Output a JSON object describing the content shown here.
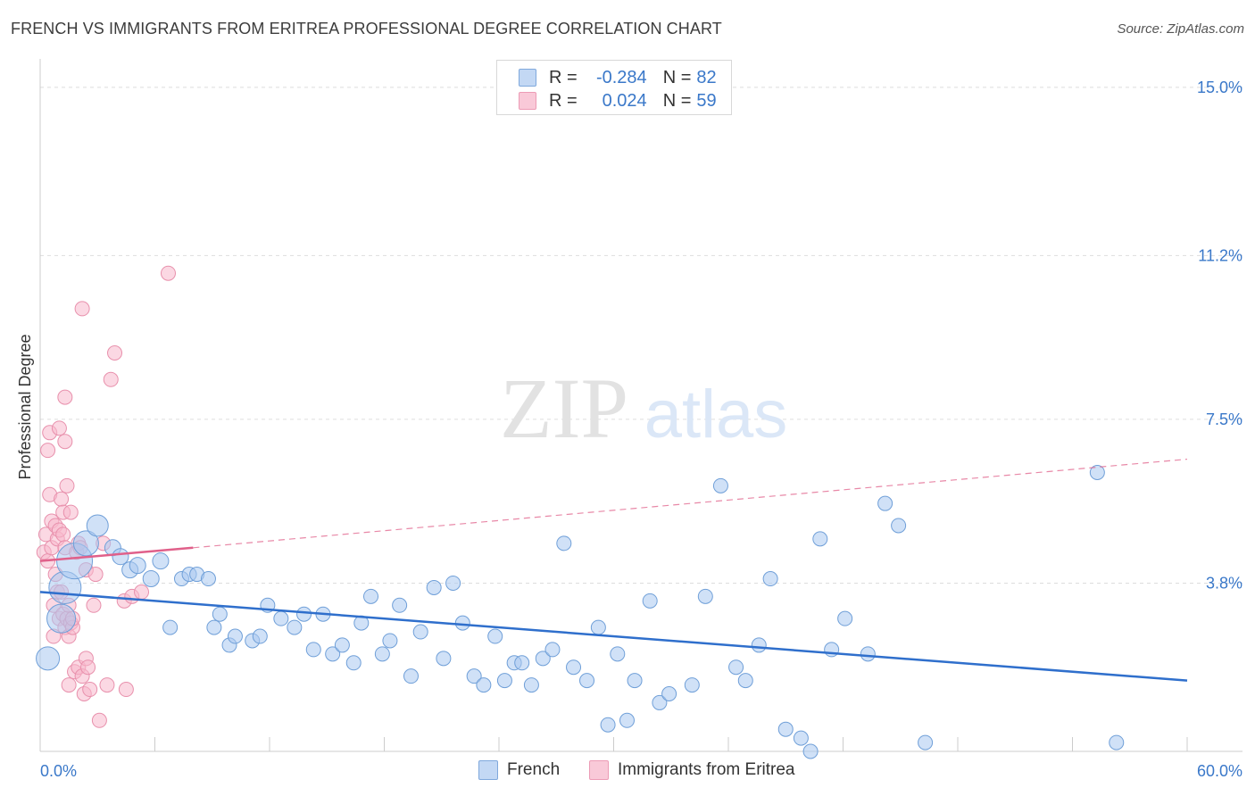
{
  "header": {
    "title": "FRENCH VS IMMIGRANTS FROM ERITREA PROFESSIONAL DEGREE CORRELATION CHART",
    "source": "Source: ZipAtlas.com"
  },
  "watermark": {
    "zip": "ZIP",
    "atlas": "atlas"
  },
  "legend_top": {
    "rows": [
      {
        "r_label": "R =",
        "r_value": "-0.284",
        "n_label": "N =",
        "n_value": "82"
      },
      {
        "r_label": "R =",
        "r_value": "0.024",
        "n_label": "N =",
        "n_value": "59"
      }
    ]
  },
  "legend_bottom": [
    "French",
    "Immigrants from Eritrea"
  ],
  "colors": {
    "french_fill": "#a9c8f0",
    "french_stroke": "#6f9fd8",
    "french_line": "#2f6fcc",
    "eritrea_fill": "#f7b8cc",
    "eritrea_stroke": "#e890ac",
    "eritrea_line": "#e0608a",
    "grid": "#dddddd",
    "axis_text": "#3a78c9"
  },
  "chart_data": {
    "type": "scatter",
    "ylabel": "Professional Degree",
    "xlim": [
      0,
      60
    ],
    "ylim": [
      0,
      15.4
    ],
    "x_tick_labels": [
      "0.0%",
      "60.0%"
    ],
    "y_ticks": [
      3.8,
      7.5,
      11.2,
      15.0
    ],
    "y_tick_labels": [
      "3.8%",
      "7.5%",
      "11.2%",
      "15.0%"
    ],
    "series": [
      {
        "name": "French",
        "r": -0.284,
        "n": 82,
        "trend": {
          "x": [
            0,
            60
          ],
          "y": [
            3.6,
            1.6
          ]
        },
        "points": [
          [
            0.4,
            2.1,
            13
          ],
          [
            1.1,
            3.0,
            16
          ],
          [
            1.3,
            3.7,
            18
          ],
          [
            1.8,
            4.3,
            20
          ],
          [
            2.4,
            4.7,
            14
          ],
          [
            3.0,
            5.1,
            12
          ],
          [
            3.8,
            4.6,
            9
          ],
          [
            4.2,
            4.4,
            9
          ],
          [
            4.7,
            4.1,
            9
          ],
          [
            5.1,
            4.2,
            9
          ],
          [
            5.8,
            3.9,
            9
          ],
          [
            6.3,
            4.3,
            9
          ],
          [
            6.8,
            2.8,
            8
          ],
          [
            7.4,
            3.9,
            8
          ],
          [
            7.8,
            4.0,
            8
          ],
          [
            8.2,
            4.0,
            8
          ],
          [
            8.8,
            3.9,
            8
          ],
          [
            9.1,
            2.8,
            8
          ],
          [
            9.4,
            3.1,
            8
          ],
          [
            9.9,
            2.4,
            8
          ],
          [
            10.2,
            2.6,
            8
          ],
          [
            11.1,
            2.5,
            8
          ],
          [
            11.5,
            2.6,
            8
          ],
          [
            11.9,
            3.3,
            8
          ],
          [
            12.6,
            3.0,
            8
          ],
          [
            13.3,
            2.8,
            8
          ],
          [
            13.8,
            3.1,
            8
          ],
          [
            14.3,
            2.3,
            8
          ],
          [
            14.8,
            3.1,
            8
          ],
          [
            15.3,
            2.2,
            8
          ],
          [
            15.8,
            2.4,
            8
          ],
          [
            16.4,
            2.0,
            8
          ],
          [
            16.8,
            2.9,
            8
          ],
          [
            17.3,
            3.5,
            8
          ],
          [
            17.9,
            2.2,
            8
          ],
          [
            18.3,
            2.5,
            8
          ],
          [
            18.8,
            3.3,
            8
          ],
          [
            19.4,
            1.7,
            8
          ],
          [
            19.9,
            2.7,
            8
          ],
          [
            20.6,
            3.7,
            8
          ],
          [
            21.1,
            2.1,
            8
          ],
          [
            21.6,
            3.8,
            8
          ],
          [
            22.1,
            2.9,
            8
          ],
          [
            22.7,
            1.7,
            8
          ],
          [
            23.2,
            1.5,
            8
          ],
          [
            23.8,
            2.6,
            8
          ],
          [
            24.3,
            1.6,
            8
          ],
          [
            24.8,
            2.0,
            8
          ],
          [
            25.2,
            2.0,
            8
          ],
          [
            25.7,
            1.5,
            8
          ],
          [
            26.3,
            2.1,
            8
          ],
          [
            26.8,
            2.3,
            8
          ],
          [
            27.4,
            4.7,
            8
          ],
          [
            27.9,
            1.9,
            8
          ],
          [
            28.6,
            1.6,
            8
          ],
          [
            29.2,
            2.8,
            8
          ],
          [
            29.7,
            0.6,
            8
          ],
          [
            30.2,
            2.2,
            8
          ],
          [
            30.7,
            0.7,
            8
          ],
          [
            31.1,
            1.6,
            8
          ],
          [
            31.9,
            3.4,
            8
          ],
          [
            32.4,
            1.1,
            8
          ],
          [
            32.9,
            1.3,
            8
          ],
          [
            34.1,
            1.5,
            8
          ],
          [
            34.8,
            3.5,
            8
          ],
          [
            35.6,
            6.0,
            8
          ],
          [
            36.4,
            1.9,
            8
          ],
          [
            36.9,
            1.6,
            8
          ],
          [
            37.6,
            2.4,
            8
          ],
          [
            38.2,
            3.9,
            8
          ],
          [
            39.0,
            0.5,
            8
          ],
          [
            39.8,
            0.3,
            8
          ],
          [
            40.3,
            0.0,
            8
          ],
          [
            40.8,
            4.8,
            8
          ],
          [
            41.4,
            2.3,
            8
          ],
          [
            42.1,
            3.0,
            8
          ],
          [
            43.3,
            2.2,
            8
          ],
          [
            44.2,
            5.6,
            8
          ],
          [
            44.9,
            5.1,
            8
          ],
          [
            46.3,
            0.2,
            8
          ],
          [
            55.3,
            6.3,
            8
          ],
          [
            56.3,
            0.2,
            8
          ]
        ]
      },
      {
        "name": "Immigrants from Eritrea",
        "r": 0.024,
        "n": 59,
        "trend": {
          "x": [
            0,
            8
          ],
          "y": [
            4.3,
            4.6
          ],
          "x_dashed": [
            8,
            60
          ],
          "y_dashed": [
            4.6,
            6.6
          ]
        },
        "points": [
          [
            0.2,
            4.5,
            8
          ],
          [
            0.3,
            4.9,
            8
          ],
          [
            0.4,
            4.3,
            8
          ],
          [
            0.4,
            6.8,
            8
          ],
          [
            0.5,
            7.2,
            8
          ],
          [
            0.5,
            5.8,
            8
          ],
          [
            0.6,
            5.2,
            8
          ],
          [
            0.6,
            4.6,
            8
          ],
          [
            0.7,
            2.6,
            8
          ],
          [
            0.7,
            3.3,
            8
          ],
          [
            0.8,
            4.0,
            8
          ],
          [
            0.8,
            5.1,
            8
          ],
          [
            0.9,
            3.6,
            8
          ],
          [
            0.9,
            4.8,
            8
          ],
          [
            1.0,
            7.3,
            8
          ],
          [
            1.0,
            3.0,
            8
          ],
          [
            1.0,
            5.0,
            8
          ],
          [
            1.1,
            3.6,
            8
          ],
          [
            1.1,
            5.7,
            8
          ],
          [
            1.2,
            4.9,
            8
          ],
          [
            1.2,
            3.1,
            8
          ],
          [
            1.2,
            5.4,
            8
          ],
          [
            1.3,
            7.0,
            8
          ],
          [
            1.3,
            8.0,
            8
          ],
          [
            1.3,
            2.8,
            8
          ],
          [
            1.3,
            4.6,
            8
          ],
          [
            1.4,
            3.0,
            8
          ],
          [
            1.4,
            6.0,
            8
          ],
          [
            1.5,
            3.3,
            8
          ],
          [
            1.5,
            2.6,
            8
          ],
          [
            1.5,
            1.5,
            8
          ],
          [
            1.6,
            5.4,
            8
          ],
          [
            1.6,
            2.9,
            8
          ],
          [
            1.7,
            2.8,
            8
          ],
          [
            1.7,
            3.0,
            8
          ],
          [
            1.8,
            1.8,
            8
          ],
          [
            1.9,
            4.5,
            8
          ],
          [
            2.0,
            4.7,
            8
          ],
          [
            2.0,
            1.9,
            8
          ],
          [
            2.1,
            4.6,
            8
          ],
          [
            2.2,
            1.7,
            8
          ],
          [
            2.2,
            10.0,
            8
          ],
          [
            2.3,
            1.3,
            8
          ],
          [
            2.4,
            4.1,
            8
          ],
          [
            2.4,
            2.1,
            8
          ],
          [
            2.5,
            1.9,
            8
          ],
          [
            2.6,
            1.4,
            8
          ],
          [
            2.8,
            3.3,
            8
          ],
          [
            2.9,
            4.0,
            8
          ],
          [
            3.1,
            0.7,
            8
          ],
          [
            3.3,
            4.7,
            8
          ],
          [
            3.5,
            1.5,
            8
          ],
          [
            3.7,
            8.4,
            8
          ],
          [
            3.9,
            9.0,
            8
          ],
          [
            4.4,
            3.4,
            8
          ],
          [
            4.5,
            1.4,
            8
          ],
          [
            4.8,
            3.5,
            8
          ],
          [
            5.3,
            3.6,
            8
          ],
          [
            6.7,
            10.8,
            8
          ]
        ]
      }
    ]
  }
}
